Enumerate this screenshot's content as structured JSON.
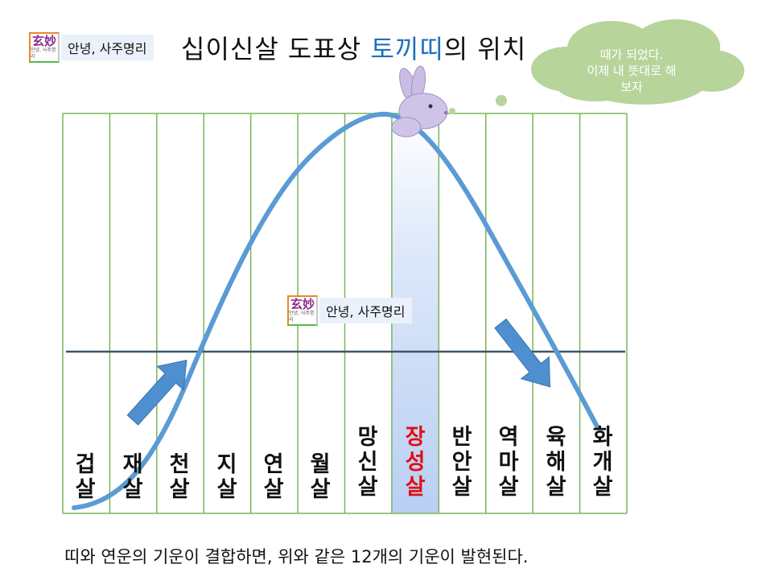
{
  "watermark": {
    "hanja": "玄妙",
    "sub_text": "안녕, 사주명리",
    "label": "안녕, 사주명리"
  },
  "title": {
    "part1": "십이신살 도표상 ",
    "highlight": "토끼띠",
    "part2": "의 위치"
  },
  "speech_bubble": {
    "lines": [
      "때가 되었다.",
      "이제 내 뜻대로 해",
      "보자"
    ]
  },
  "columns": [
    {
      "line1": "",
      "line2": "겁",
      "line3": "살",
      "highlight": false
    },
    {
      "line1": "",
      "line2": "재",
      "line3": "살",
      "highlight": false
    },
    {
      "line1": "",
      "line2": "천",
      "line3": "살",
      "highlight": false
    },
    {
      "line1": "",
      "line2": "지",
      "line3": "살",
      "highlight": false
    },
    {
      "line1": "",
      "line2": "연",
      "line3": "살",
      "highlight": false
    },
    {
      "line1": "",
      "line2": "월",
      "line3": "살",
      "highlight": false
    },
    {
      "line1": "망",
      "line2": "신",
      "line3": "살",
      "highlight": false
    },
    {
      "line1": "장",
      "line2": "성",
      "line3": "살",
      "highlight": true
    },
    {
      "line1": "반",
      "line2": "안",
      "line3": "살",
      "highlight": false
    },
    {
      "line1": "역",
      "line2": "마",
      "line3": "살",
      "highlight": false
    },
    {
      "line1": "육",
      "line2": "해",
      "line3": "살",
      "highlight": false
    },
    {
      "line1": "화",
      "line2": "개",
      "line3": "살",
      "highlight": false
    }
  ],
  "caption": "띠와 연운의 기운이 결합하면, 위와 같은 12개의 기운이 발현된다.",
  "colors": {
    "grid": "#7ab55c",
    "curve": "#5b9bd5",
    "baseline": "#3d5468",
    "arrow": "#4e8fcf",
    "highlight_column": "#c9daf6",
    "highlight_text": "#e01010",
    "bubble": "#b7d49b",
    "title_highlight": "#1f6fc0"
  }
}
